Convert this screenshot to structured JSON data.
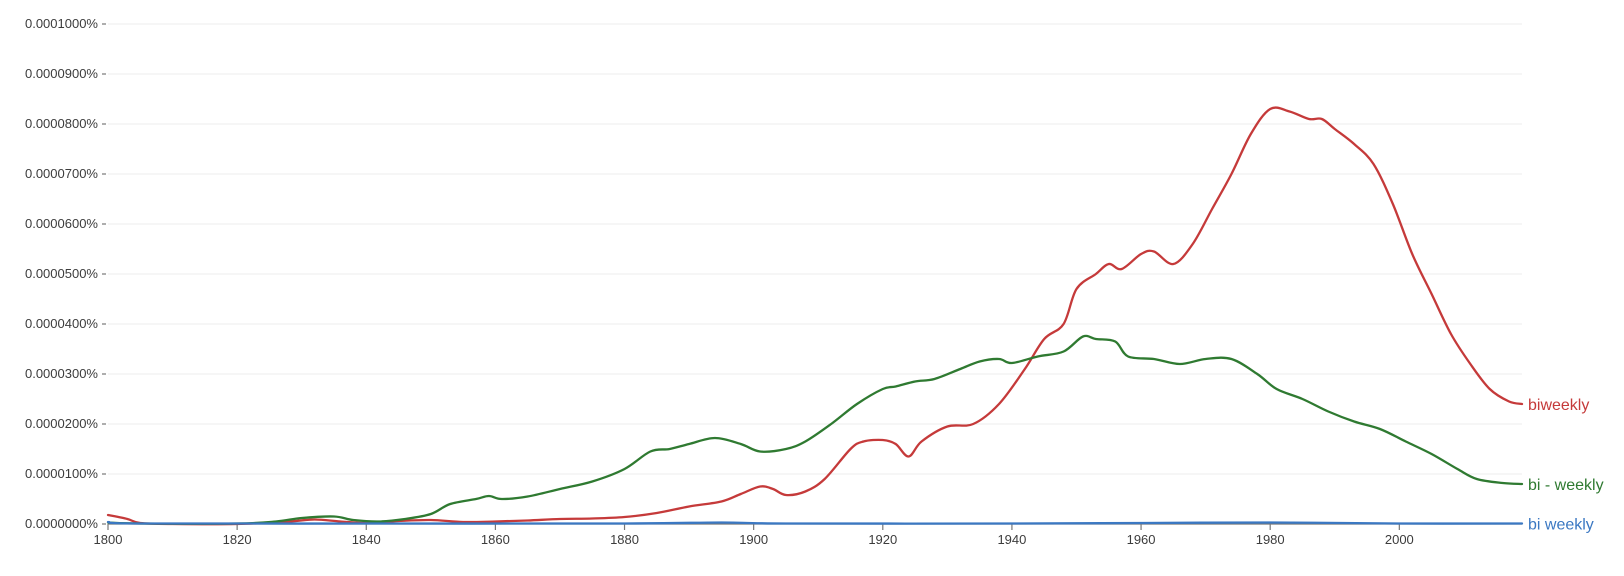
{
  "chart_data": {
    "type": "line",
    "title": "",
    "xlabel": "",
    "ylabel": "",
    "xlim": [
      1800,
      2019
    ],
    "ylim": [
      0,
      1e-05
    ],
    "grid": true,
    "legend_placement": "line-end labels on right",
    "x_ticks": [
      "1800",
      "1820",
      "1840",
      "1860",
      "1880",
      "1900",
      "1920",
      "1940",
      "1960",
      "1980",
      "2000"
    ],
    "y_ticks": [
      "0.0000000%",
      "0.0000100%",
      "0.0000200%",
      "0.0000300%",
      "0.0000400%",
      "0.0000500%",
      "0.0000600%",
      "0.0000700%",
      "0.0000800%",
      "0.0000900%",
      "0.0001000%"
    ],
    "series": [
      {
        "name": "biweekly",
        "color": "#c53a3a",
        "points": [
          [
            1800,
            1.8e-07
          ],
          [
            1803,
            1e-07
          ],
          [
            1805,
            2e-08
          ],
          [
            1810,
            0.0
          ],
          [
            1820,
            0.0
          ],
          [
            1828,
            5e-08
          ],
          [
            1832,
            9e-08
          ],
          [
            1836,
            5e-08
          ],
          [
            1840,
            2e-08
          ],
          [
            1845,
            6e-08
          ],
          [
            1850,
            8e-08
          ],
          [
            1855,
            4e-08
          ],
          [
            1860,
            5e-08
          ],
          [
            1865,
            7e-08
          ],
          [
            1870,
            1e-07
          ],
          [
            1875,
            1.1e-07
          ],
          [
            1880,
            1.4e-07
          ],
          [
            1885,
            2.2e-07
          ],
          [
            1890,
            3.5e-07
          ],
          [
            1895,
            4.5e-07
          ],
          [
            1898,
            6e-07
          ],
          [
            1901,
            7.5e-07
          ],
          [
            1903,
            7e-07
          ],
          [
            1905,
            5.8e-07
          ],
          [
            1908,
            6.5e-07
          ],
          [
            1911,
            9e-07
          ],
          [
            1915,
            1.5e-06
          ],
          [
            1917,
            1.65e-06
          ],
          [
            1920,
            1.68e-06
          ],
          [
            1922,
            1.6e-06
          ],
          [
            1924,
            1.35e-06
          ],
          [
            1926,
            1.65e-06
          ],
          [
            1930,
            1.95e-06
          ],
          [
            1934,
            2e-06
          ],
          [
            1938,
            2.4e-06
          ],
          [
            1942,
            3.1e-06
          ],
          [
            1945,
            3.7e-06
          ],
          [
            1948,
            4e-06
          ],
          [
            1950,
            4.7e-06
          ],
          [
            1953,
            5e-06
          ],
          [
            1955,
            5.2e-06
          ],
          [
            1957,
            5.1e-06
          ],
          [
            1960,
            5.4e-06
          ],
          [
            1962,
            5.45e-06
          ],
          [
            1965,
            5.2e-06
          ],
          [
            1968,
            5.6e-06
          ],
          [
            1971,
            6.3e-06
          ],
          [
            1974,
            7e-06
          ],
          [
            1977,
            7.8e-06
          ],
          [
            1980,
            8.3e-06
          ],
          [
            1983,
            8.25e-06
          ],
          [
            1986,
            8.1e-06
          ],
          [
            1988,
            8.1e-06
          ],
          [
            1990,
            7.9e-06
          ],
          [
            1993,
            7.6e-06
          ],
          [
            1996,
            7.2e-06
          ],
          [
            1999,
            6.4e-06
          ],
          [
            2002,
            5.4e-06
          ],
          [
            2005,
            4.6e-06
          ],
          [
            2008,
            3.8e-06
          ],
          [
            2011,
            3.2e-06
          ],
          [
            2014,
            2.7e-06
          ],
          [
            2017,
            2.45e-06
          ],
          [
            2019,
            2.4e-06
          ]
        ]
      },
      {
        "name": "bi - weekly",
        "color": "#2f7a31",
        "points": [
          [
            1800,
            3e-08
          ],
          [
            1805,
            1e-08
          ],
          [
            1820,
            1e-08
          ],
          [
            1826,
            5e-08
          ],
          [
            1830,
            1.2e-07
          ],
          [
            1835,
            1.5e-07
          ],
          [
            1838,
            8e-08
          ],
          [
            1842,
            5e-08
          ],
          [
            1846,
            1e-07
          ],
          [
            1850,
            2e-07
          ],
          [
            1853,
            4e-07
          ],
          [
            1857,
            5e-07
          ],
          [
            1859,
            5.6e-07
          ],
          [
            1861,
            5e-07
          ],
          [
            1865,
            5.5e-07
          ],
          [
            1870,
            7e-07
          ],
          [
            1875,
            8.5e-07
          ],
          [
            1880,
            1.1e-06
          ],
          [
            1884,
            1.45e-06
          ],
          [
            1887,
            1.5e-06
          ],
          [
            1890,
            1.6e-06
          ],
          [
            1894,
            1.72e-06
          ],
          [
            1898,
            1.6e-06
          ],
          [
            1901,
            1.45e-06
          ],
          [
            1905,
            1.5e-06
          ],
          [
            1908,
            1.65e-06
          ],
          [
            1912,
            2e-06
          ],
          [
            1916,
            2.4e-06
          ],
          [
            1920,
            2.7e-06
          ],
          [
            1922,
            2.75e-06
          ],
          [
            1925,
            2.85e-06
          ],
          [
            1928,
            2.9e-06
          ],
          [
            1932,
            3.1e-06
          ],
          [
            1935,
            3.25e-06
          ],
          [
            1938,
            3.3e-06
          ],
          [
            1940,
            3.22e-06
          ],
          [
            1944,
            3.35e-06
          ],
          [
            1948,
            3.45e-06
          ],
          [
            1951,
            3.75e-06
          ],
          [
            1953,
            3.7e-06
          ],
          [
            1956,
            3.65e-06
          ],
          [
            1958,
            3.35e-06
          ],
          [
            1962,
            3.3e-06
          ],
          [
            1966,
            3.2e-06
          ],
          [
            1970,
            3.3e-06
          ],
          [
            1974,
            3.3e-06
          ],
          [
            1978,
            3e-06
          ],
          [
            1981,
            2.7e-06
          ],
          [
            1985,
            2.5e-06
          ],
          [
            1989,
            2.25e-06
          ],
          [
            1993,
            2.05e-06
          ],
          [
            1997,
            1.9e-06
          ],
          [
            2001,
            1.65e-06
          ],
          [
            2005,
            1.4e-06
          ],
          [
            2009,
            1.1e-06
          ],
          [
            2012,
            9e-07
          ],
          [
            2016,
            8.2e-07
          ],
          [
            2019,
            8e-07
          ]
        ]
      },
      {
        "name": "bi weekly",
        "color": "#3b78c2",
        "points": [
          [
            1800,
            4e-08
          ],
          [
            1805,
            1e-08
          ],
          [
            1840,
            1e-08
          ],
          [
            1880,
            1e-08
          ],
          [
            1895,
            3e-08
          ],
          [
            1905,
            1e-08
          ],
          [
            1940,
            1e-08
          ],
          [
            1960,
            2e-08
          ],
          [
            1980,
            3e-08
          ],
          [
            2000,
            1e-08
          ],
          [
            2019,
            1e-08
          ]
        ]
      }
    ]
  }
}
